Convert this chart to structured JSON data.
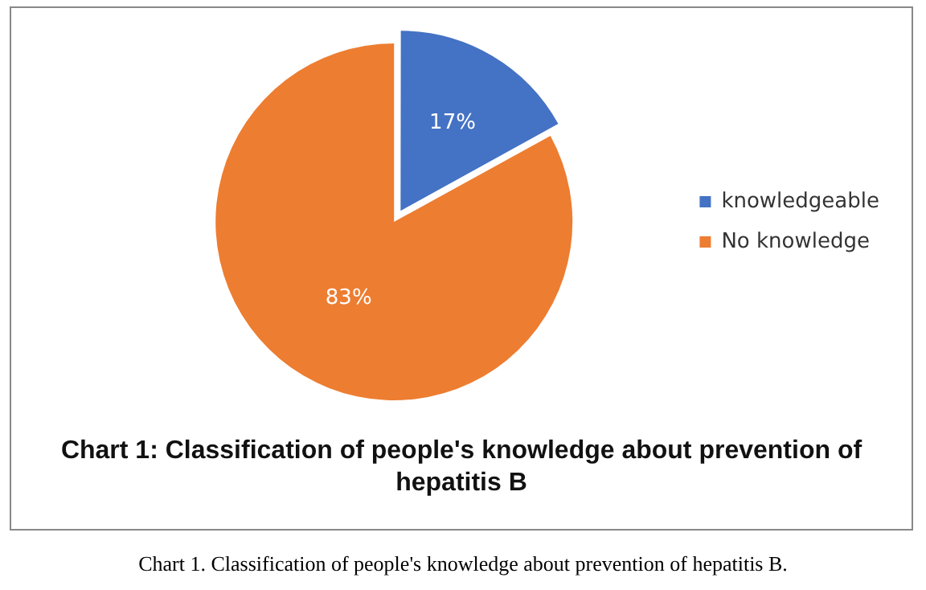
{
  "chart_data": {
    "type": "pie",
    "title": "Chart 1: Classification of people's knowledge about prevention of hepatitis B",
    "categories": [
      "knowledgeable",
      "No knowledge"
    ],
    "values": [
      17,
      83
    ],
    "colors": [
      "#4472c4",
      "#ed7d31"
    ],
    "value_labels": [
      "17%",
      "83%"
    ],
    "legend": "right",
    "annotations": [
      "Chart 1. Classification of people's knowledge about prevention of hepatitis B."
    ]
  }
}
